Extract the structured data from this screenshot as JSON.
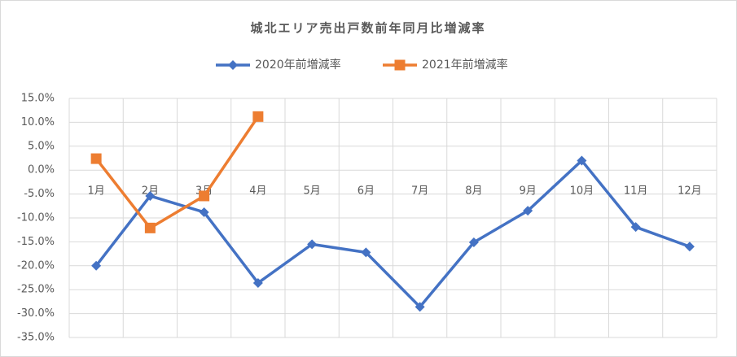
{
  "chart_data": {
    "type": "line",
    "title": "城北エリア売出戸数前年同月比増減率",
    "categories": [
      "1月",
      "2月",
      "3月",
      "4月",
      "5月",
      "6月",
      "7月",
      "8月",
      "9月",
      "10月",
      "11月",
      "12月"
    ],
    "series": [
      {
        "name": "2020年前増減率",
        "color": "#4472c4",
        "marker": "diamond",
        "values": [
          -20.0,
          -5.4,
          -8.8,
          -23.6,
          -15.5,
          -17.2,
          -28.6,
          -15.1,
          -8.5,
          2.0,
          -11.9,
          -16.0
        ]
      },
      {
        "name": "2021年前増減率",
        "color": "#ed7d31",
        "marker": "square",
        "values": [
          2.4,
          -12.1,
          -5.4,
          11.2,
          null,
          null,
          null,
          null,
          null,
          null,
          null,
          null
        ]
      }
    ],
    "ylim": [
      -35,
      15
    ],
    "yticks": [
      {
        "value": -35,
        "label": "-35.0%"
      },
      {
        "value": -30,
        "label": "-30.0%"
      },
      {
        "value": -25,
        "label": "-25.0%"
      },
      {
        "value": -20,
        "label": "-20.0%"
      },
      {
        "value": -15,
        "label": "-15.0%"
      },
      {
        "value": -10,
        "label": "-10.0%"
      },
      {
        "value": -5,
        "label": "-5.0%"
      },
      {
        "value": 0,
        "label": "0.0%"
      },
      {
        "value": 5,
        "label": "5.0%"
      },
      {
        "value": 10,
        "label": "10.0%"
      },
      {
        "value": 15,
        "label": "15.0%"
      }
    ],
    "grid": true,
    "legend": "top"
  }
}
